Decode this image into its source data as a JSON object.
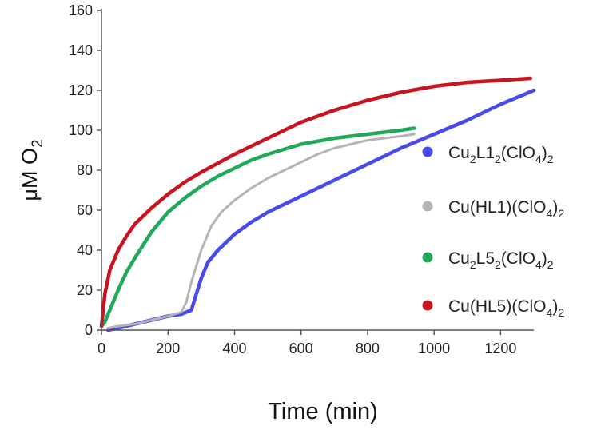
{
  "chart_data": {
    "type": "line",
    "title": "",
    "xlabel": "Time (min)",
    "ylabel": {
      "main": "μM O",
      "sub": "2"
    },
    "xlim": [
      0,
      1300
    ],
    "ylim": [
      0,
      160
    ],
    "xticks": [
      "0",
      "200",
      "400",
      "600",
      "800",
      "1000",
      "1200"
    ],
    "yticks": [
      "0",
      "20",
      "40",
      "60",
      "80",
      "100",
      "120",
      "140",
      "160"
    ],
    "grid": false,
    "legend_position": "right",
    "series": [
      {
        "name": "Cu2L12(ClO4)2",
        "label_parts": [
          [
            "Cu",
            ""
          ],
          [
            "2",
            "sub"
          ],
          [
            "L1",
            ""
          ],
          [
            "2",
            "sub"
          ],
          [
            "(ClO",
            ""
          ],
          [
            "4",
            "sub"
          ],
          [
            ")",
            ""
          ],
          [
            "2",
            "sub"
          ]
        ],
        "color": "#4a4ae8",
        "x": [
          20,
          50,
          100,
          150,
          200,
          240,
          270,
          285,
          300,
          320,
          350,
          400,
          450,
          500,
          600,
          700,
          800,
          900,
          1000,
          1100,
          1200,
          1300
        ],
        "y": [
          0,
          1,
          3,
          5,
          7,
          8,
          10,
          18,
          26,
          34,
          40,
          48,
          54,
          59,
          67,
          75,
          83,
          91,
          98,
          105,
          113,
          120
        ]
      },
      {
        "name": "Cu(HL1)(ClO4)2",
        "label_parts": [
          [
            "Cu(HL1)(ClO",
            ""
          ],
          [
            "4",
            "sub"
          ],
          [
            ")",
            ""
          ],
          [
            "2",
            "sub"
          ]
        ],
        "color": "#b4b4b4",
        "x": [
          20,
          50,
          100,
          150,
          200,
          240,
          255,
          270,
          285,
          300,
          330,
          360,
          400,
          450,
          500,
          550,
          600,
          650,
          700,
          750,
          800,
          850,
          900,
          940
        ],
        "y": [
          1,
          2,
          3,
          5,
          7,
          9,
          14,
          24,
          32,
          40,
          52,
          59,
          65,
          71,
          76,
          80,
          84,
          88,
          91,
          93,
          95,
          96,
          97,
          98
        ]
      },
      {
        "name": "Cu2L52(ClO4)2",
        "label_parts": [
          [
            "Cu",
            ""
          ],
          [
            "2",
            "sub"
          ],
          [
            "L5",
            ""
          ],
          [
            "2",
            "sub"
          ],
          [
            "(ClO",
            ""
          ],
          [
            "4",
            "sub"
          ],
          [
            ")",
            ""
          ],
          [
            "2",
            "sub"
          ]
        ],
        "color": "#22a85a",
        "x": [
          0,
          10,
          25,
          50,
          75,
          100,
          150,
          200,
          250,
          300,
          350,
          400,
          450,
          500,
          600,
          700,
          800,
          900,
          940
        ],
        "y": [
          2,
          4,
          10,
          20,
          29,
          36,
          49,
          59,
          66,
          72,
          77,
          81,
          85,
          88,
          93,
          96,
          98,
          100,
          101
        ]
      },
      {
        "name": "Cu(HL5)(ClO4)2",
        "label_parts": [
          [
            "Cu(HL5)(ClO",
            ""
          ],
          [
            "4",
            "sub"
          ],
          [
            ")",
            ""
          ],
          [
            "2",
            "sub"
          ]
        ],
        "color": "#c8141e",
        "x": [
          0,
          10,
          25,
          50,
          75,
          100,
          150,
          200,
          250,
          300,
          400,
          500,
          600,
          700,
          800,
          900,
          1000,
          1100,
          1200,
          1290
        ],
        "y": [
          2,
          18,
          30,
          40,
          47,
          53,
          61,
          68,
          74,
          79,
          88,
          96,
          104,
          110,
          115,
          119,
          122,
          124,
          125,
          126
        ]
      }
    ]
  }
}
